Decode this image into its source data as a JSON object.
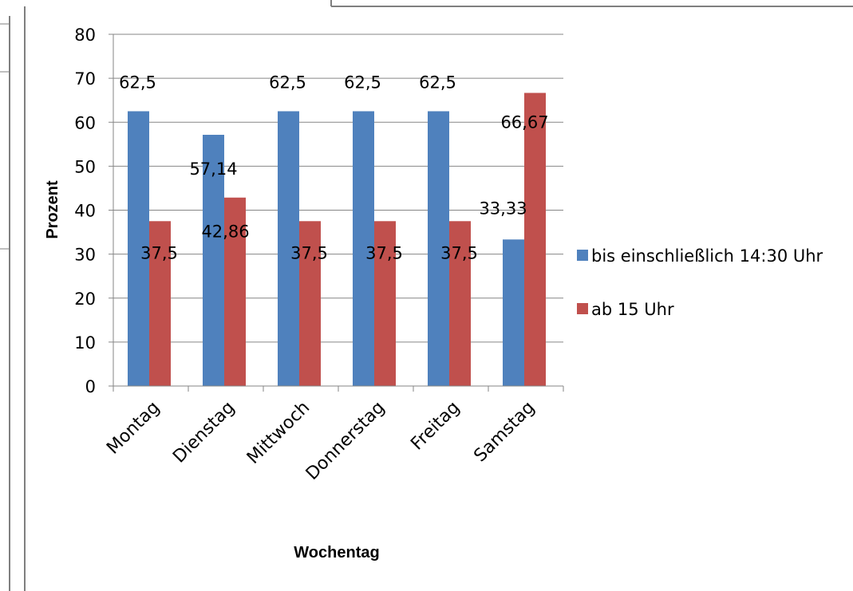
{
  "chart_data": {
    "type": "bar",
    "categories": [
      "Montag",
      "Dienstag",
      "Mittwoch",
      "Donnerstag",
      "Freitag",
      "Samstag"
    ],
    "series": [
      {
        "name": "bis einschließlich 14:30 Uhr",
        "values": [
          62.5,
          57.14,
          62.5,
          62.5,
          62.5,
          33.33
        ],
        "labels": [
          "62,5",
          "57,14",
          "62,5",
          "62,5",
          "62,5",
          "33,33"
        ]
      },
      {
        "name": "ab 15 Uhr",
        "values": [
          37.5,
          42.86,
          37.5,
          37.5,
          37.5,
          66.67
        ],
        "labels": [
          "37,5",
          "42,86",
          "37,5",
          "37,5",
          "37,5",
          "66,67"
        ]
      }
    ],
    "xlabel": "Wochentag",
    "ylabel": "Prozent",
    "ylim": [
      0,
      80
    ],
    "yticks": [
      0,
      10,
      20,
      30,
      40,
      50,
      60,
      70,
      80
    ],
    "grid": true,
    "legend_position": "right"
  },
  "colors": {
    "series_1": "#4F81BD",
    "series_2": "#C0504D",
    "grid": "#868686"
  }
}
